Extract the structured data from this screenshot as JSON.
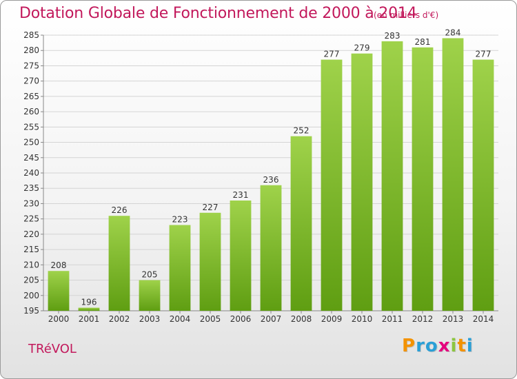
{
  "chart_data": {
    "type": "bar",
    "title": "Dotation Globale de Fonctionnement de 2000 à 2014",
    "unit": "(en milliers d'€)",
    "categories": [
      "2000",
      "2001",
      "2002",
      "2003",
      "2004",
      "2005",
      "2006",
      "2007",
      "2008",
      "2009",
      "2010",
      "2011",
      "2012",
      "2013",
      "2014"
    ],
    "values": [
      208,
      196,
      226,
      205,
      223,
      227,
      231,
      236,
      252,
      277,
      279,
      283,
      281,
      284,
      277
    ],
    "ylim": [
      195,
      285
    ],
    "yticks": [
      195,
      200,
      205,
      210,
      215,
      220,
      225,
      230,
      235,
      240,
      245,
      250,
      255,
      260,
      265,
      270,
      275,
      280,
      285
    ],
    "grid": true,
    "colors": {
      "bar_top": "#9fd24a",
      "bar_bottom": "#5f9e12",
      "text": "#c2185b"
    }
  },
  "footer": {
    "commune": "TRéVOL",
    "logo_letters": [
      "P",
      "r",
      "o",
      "x",
      "i",
      "t",
      "i"
    ],
    "logo_colors": [
      "#f39200",
      "#2a9fd6",
      "#2a9fd6",
      "#e5007d",
      "#8cc63f",
      "#f39200",
      "#2a9fd6"
    ]
  }
}
